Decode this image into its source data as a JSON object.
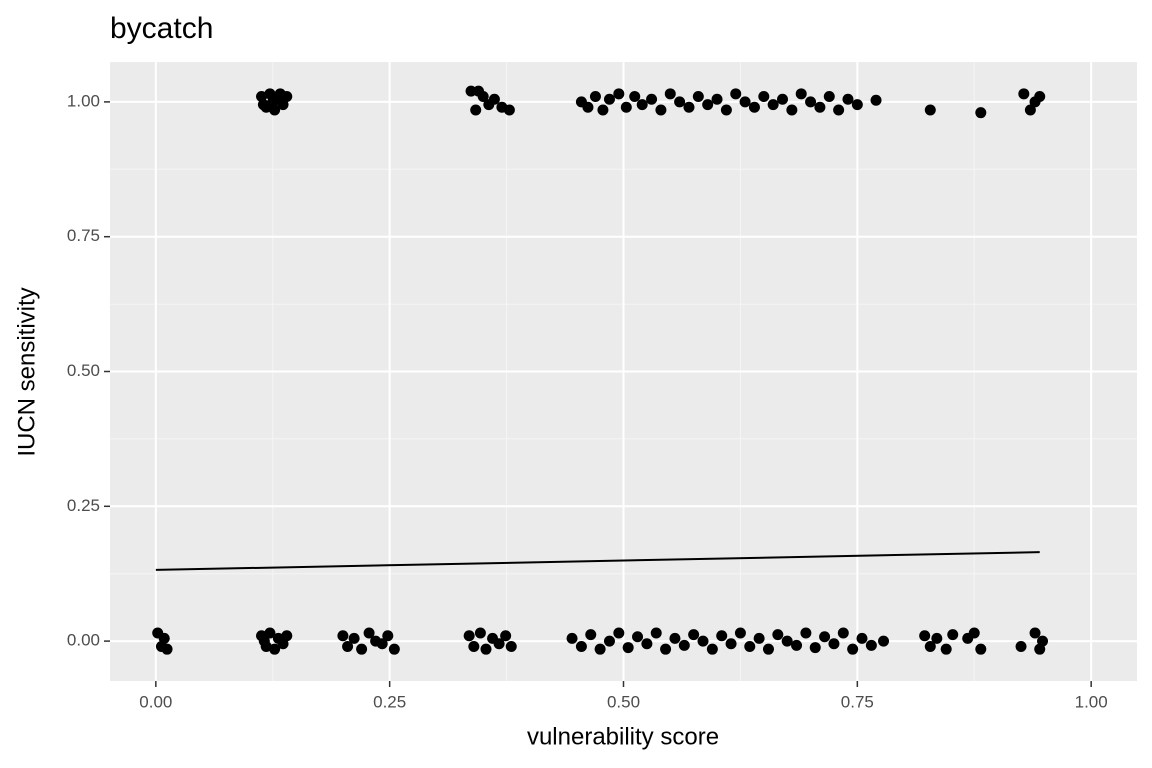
{
  "chart_data": {
    "type": "scatter",
    "title": "bycatch",
    "x_label": "vulnerability score",
    "y_label": "IUCN sensitivity",
    "xlim": [
      -0.049,
      1.049
    ],
    "ylim": [
      -0.074,
      1.074
    ],
    "xticks": [
      {
        "value": 0,
        "label": "0.00"
      },
      {
        "value": 0.25,
        "label": "0.25"
      },
      {
        "value": 0.5,
        "label": "0.50"
      },
      {
        "value": 0.75,
        "label": "0.75"
      },
      {
        "value": 1,
        "label": "1.00"
      }
    ],
    "yticks": [
      {
        "value": 0,
        "label": "0.00"
      },
      {
        "value": 0.25,
        "label": "0.25"
      },
      {
        "value": 0.5,
        "label": "0.50"
      },
      {
        "value": 0.75,
        "label": "0.75"
      },
      {
        "value": 1,
        "label": "1.00"
      }
    ],
    "x_minor_ticks": [
      0.125,
      0.375,
      0.625,
      0.875
    ],
    "y_minor_ticks": [
      0.125,
      0.375,
      0.625,
      0.875
    ],
    "grid": true,
    "points": {
      "color": "#000000",
      "x": [
        0.113,
        0.118,
        0.122,
        0.127,
        0.131,
        0.136,
        0.14,
        0.115,
        0.125,
        0.133,
        0.337,
        0.342,
        0.35,
        0.356,
        0.362,
        0.37,
        0.378,
        0.345,
        0.455,
        0.462,
        0.47,
        0.478,
        0.485,
        0.495,
        0.503,
        0.512,
        0.52,
        0.53,
        0.54,
        0.55,
        0.56,
        0.57,
        0.58,
        0.59,
        0.6,
        0.61,
        0.62,
        0.63,
        0.64,
        0.65,
        0.66,
        0.67,
        0.68,
        0.69,
        0.7,
        0.71,
        0.72,
        0.73,
        0.74,
        0.75,
        0.77,
        0.828,
        0.882,
        0.928,
        0.935,
        0.94,
        0.945,
        0.002,
        0.006,
        0.009,
        0.012,
        0.113,
        0.118,
        0.122,
        0.127,
        0.131,
        0.136,
        0.14,
        0.116,
        0.2,
        0.205,
        0.212,
        0.22,
        0.228,
        0.235,
        0.242,
        0.248,
        0.255,
        0.335,
        0.34,
        0.347,
        0.353,
        0.36,
        0.367,
        0.374,
        0.38,
        0.445,
        0.455,
        0.465,
        0.475,
        0.485,
        0.495,
        0.505,
        0.515,
        0.525,
        0.535,
        0.545,
        0.555,
        0.565,
        0.575,
        0.585,
        0.595,
        0.605,
        0.615,
        0.625,
        0.635,
        0.645,
        0.655,
        0.665,
        0.675,
        0.685,
        0.695,
        0.705,
        0.715,
        0.725,
        0.735,
        0.745,
        0.755,
        0.765,
        0.778,
        0.822,
        0.828,
        0.835,
        0.845,
        0.852,
        0.868,
        0.875,
        0.882,
        0.925,
        0.94,
        0.945,
        0.948
      ],
      "y": [
        1.01,
        0.99,
        1.015,
        0.985,
        1.005,
        0.995,
        1.01,
        0.995,
        1.0,
        1.015,
        1.02,
        0.985,
        1.01,
        0.995,
        1.005,
        0.99,
        0.985,
        1.02,
        1.0,
        0.99,
        1.01,
        0.985,
        1.005,
        1.015,
        0.99,
        1.01,
        0.995,
        1.005,
        0.985,
        1.015,
        1.0,
        0.99,
        1.01,
        0.995,
        1.005,
        0.985,
        1.015,
        1.0,
        0.99,
        1.01,
        0.995,
        1.005,
        0.985,
        1.015,
        1.0,
        0.99,
        1.01,
        0.985,
        1.005,
        0.995,
        1.003,
        0.985,
        0.98,
        1.015,
        0.985,
        1.0,
        1.01,
        0.015,
        -0.01,
        0.005,
        -0.015,
        0.01,
        -0.01,
        0.015,
        -0.015,
        0.005,
        -0.005,
        0.01,
        0.0,
        0.01,
        -0.01,
        0.005,
        -0.015,
        0.015,
        0.0,
        -0.005,
        0.01,
        -0.015,
        0.01,
        -0.01,
        0.015,
        -0.015,
        0.005,
        -0.005,
        0.01,
        -0.01,
        0.005,
        -0.01,
        0.012,
        -0.015,
        0.0,
        0.015,
        -0.012,
        0.008,
        -0.005,
        0.015,
        -0.015,
        0.005,
        -0.008,
        0.012,
        0.0,
        -0.015,
        0.01,
        -0.005,
        0.015,
        -0.01,
        0.005,
        -0.015,
        0.012,
        0.0,
        -0.008,
        0.015,
        -0.012,
        0.008,
        -0.005,
        0.015,
        -0.015,
        0.005,
        -0.008,
        0.0,
        0.01,
        -0.01,
        0.005,
        -0.015,
        0.012,
        0.005,
        0.015,
        -0.015,
        -0.01,
        0.015,
        -0.015,
        0.0
      ]
    },
    "fit": {
      "color": "#000000",
      "x": [
        0,
        0.945
      ],
      "y": [
        0.132,
        0.165
      ]
    }
  }
}
